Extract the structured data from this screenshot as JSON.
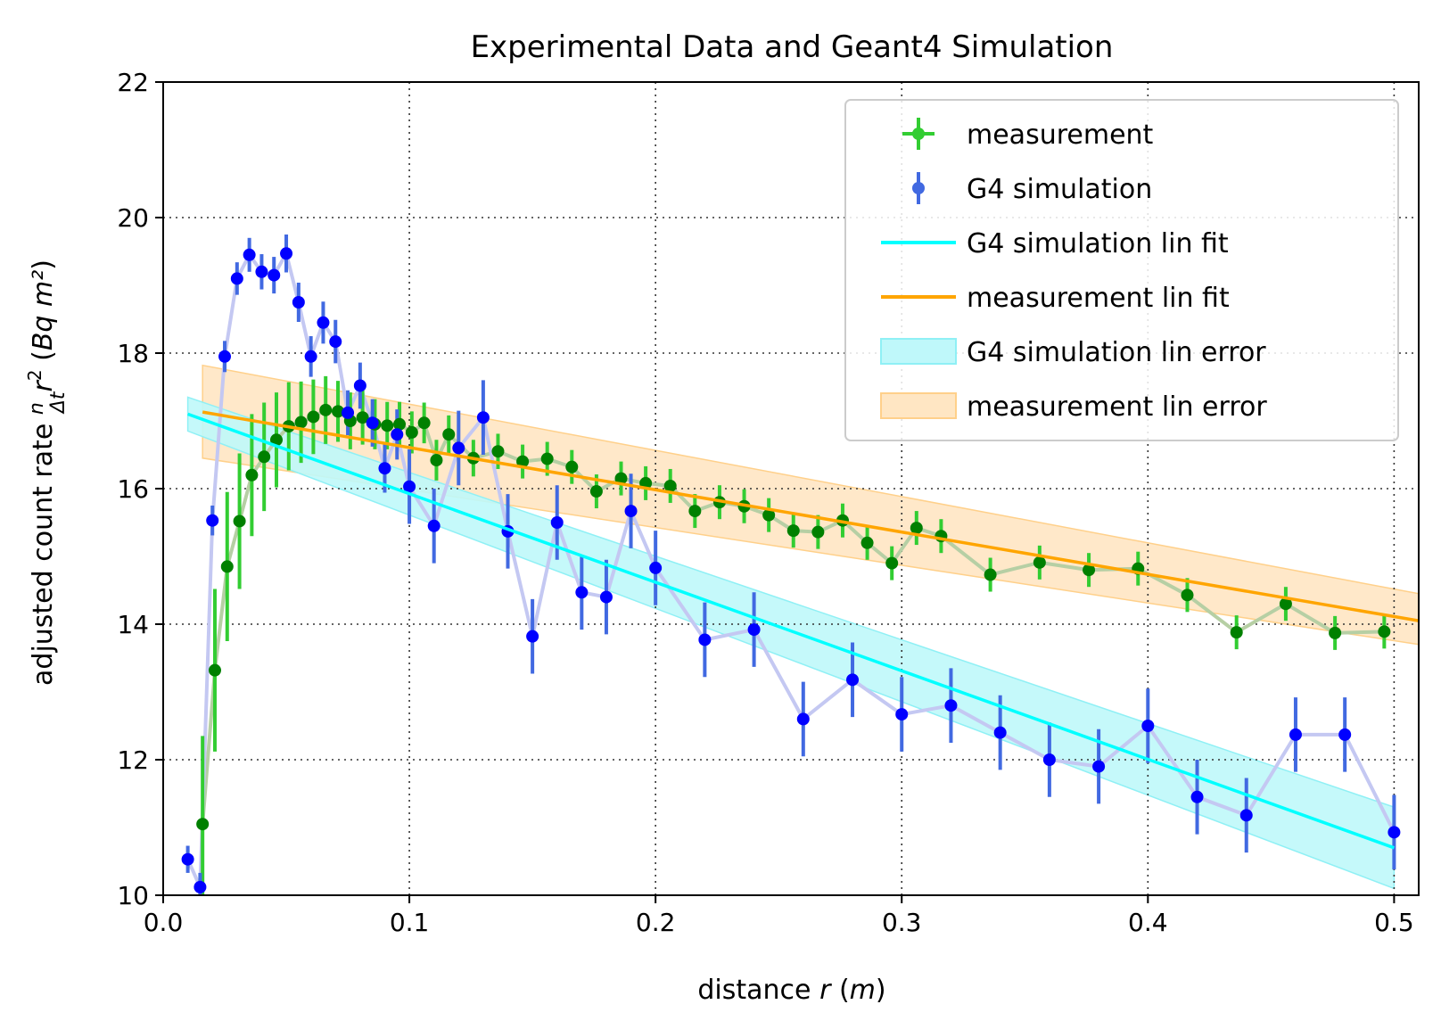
{
  "chart_data": {
    "type": "scatter",
    "title": "Experimental Data and Geant4 Simulation",
    "xlabel": "distance",
    "xlabel_var": "r",
    "xlabel_unit": "m",
    "ylabel": "adjusted count rate",
    "ylabel_unit": "Bq m²",
    "xlim": [
      0.0,
      0.51
    ],
    "ylim": [
      10,
      22
    ],
    "xticks": [
      0.0,
      0.1,
      0.2,
      0.3,
      0.4,
      0.5
    ],
    "xtick_labels": [
      "0.0",
      "0.1",
      "0.2",
      "0.3",
      "0.4",
      "0.5"
    ],
    "yticks": [
      10,
      12,
      14,
      16,
      18,
      20,
      22
    ],
    "ytick_labels": [
      "10",
      "12",
      "14",
      "16",
      "18",
      "20",
      "22"
    ],
    "grid": true,
    "legend_position": "top-right",
    "colors": {
      "measurement": "#32cd32",
      "measurement_marker": "#008000",
      "measurement_line": "#b6cfa4",
      "simulation": "#4169e1",
      "simulation_marker": "#0000ff",
      "simulation_line": "#c4c8f2",
      "sim_fit": "#00ffff",
      "meas_fit": "#ffa500",
      "sim_band": "#bff8fa",
      "meas_band": "#ffe6c3"
    },
    "series": [
      {
        "name": "measurement",
        "x": [
          0.016,
          0.021,
          0.026,
          0.031,
          0.036,
          0.041,
          0.046,
          0.051,
          0.056,
          0.061,
          0.066,
          0.071,
          0.076,
          0.081,
          0.086,
          0.091,
          0.096,
          0.101,
          0.106,
          0.111,
          0.116,
          0.126,
          0.136,
          0.146,
          0.156,
          0.166,
          0.176,
          0.186,
          0.196,
          0.206,
          0.216,
          0.226,
          0.236,
          0.246,
          0.256,
          0.266,
          0.276,
          0.286,
          0.296,
          0.306,
          0.316,
          0.336,
          0.356,
          0.376,
          0.396,
          0.416,
          0.436,
          0.456,
          0.476,
          0.496
        ],
        "y": [
          11.05,
          13.32,
          14.85,
          15.52,
          16.2,
          16.47,
          16.72,
          16.92,
          16.98,
          17.06,
          17.16,
          17.14,
          17.0,
          17.05,
          16.95,
          16.93,
          16.95,
          16.83,
          16.97,
          16.42,
          16.8,
          16.45,
          16.55,
          16.4,
          16.44,
          16.32,
          15.96,
          16.15,
          16.08,
          16.04,
          15.67,
          15.8,
          15.74,
          15.61,
          15.38,
          15.36,
          15.53,
          15.2,
          14.9,
          15.42,
          15.3,
          14.73,
          14.91,
          14.8,
          14.82,
          14.43,
          13.88,
          14.3,
          13.87,
          13.89
        ],
        "yerr": [
          1.3,
          1.2,
          1.1,
          1.0,
          0.9,
          0.8,
          0.7,
          0.65,
          0.6,
          0.55,
          0.5,
          0.45,
          0.42,
          0.4,
          0.37,
          0.35,
          0.33,
          0.31,
          0.3,
          0.3,
          0.28,
          0.27,
          0.26,
          0.25,
          0.25,
          0.25,
          0.25,
          0.25,
          0.25,
          0.25,
          0.25,
          0.25,
          0.25,
          0.25,
          0.25,
          0.25,
          0.25,
          0.25,
          0.25,
          0.25,
          0.25,
          0.25,
          0.25,
          0.25,
          0.25,
          0.25,
          0.25,
          0.25,
          0.25,
          0.25
        ]
      },
      {
        "name": "G4 simulation",
        "x": [
          0.01,
          0.015,
          0.02,
          0.025,
          0.03,
          0.035,
          0.04,
          0.045,
          0.05,
          0.055,
          0.06,
          0.065,
          0.07,
          0.075,
          0.08,
          0.085,
          0.09,
          0.095,
          0.1,
          0.11,
          0.12,
          0.13,
          0.14,
          0.15,
          0.16,
          0.17,
          0.18,
          0.19,
          0.2,
          0.22,
          0.24,
          0.26,
          0.28,
          0.3,
          0.32,
          0.34,
          0.36,
          0.38,
          0.4,
          0.42,
          0.44,
          0.46,
          0.48,
          0.5
        ],
        "y": [
          10.53,
          10.12,
          15.53,
          17.95,
          19.1,
          19.45,
          19.2,
          19.15,
          19.47,
          18.75,
          17.95,
          18.45,
          18.17,
          17.12,
          17.52,
          16.97,
          16.3,
          16.8,
          16.03,
          15.45,
          16.6,
          17.05,
          15.37,
          13.82,
          15.5,
          14.47,
          14.4,
          15.67,
          14.83,
          13.77,
          13.92,
          12.6,
          13.18,
          12.67,
          12.8,
          12.4,
          12.0,
          11.9,
          12.5,
          11.45,
          11.18,
          12.37,
          12.37,
          10.93
        ]
      },
      {
        "name": "G4 simulation lin fit",
        "x": [
          0.01,
          0.5
        ],
        "y": [
          17.1,
          10.7
        ]
      },
      {
        "name": "measurement lin fit",
        "x": [
          0.016,
          0.51
        ],
        "y": [
          17.13,
          14.05
        ]
      },
      {
        "name": "G4 simulation lin error",
        "x": [
          0.01,
          0.5
        ],
        "y_low": [
          16.85,
          10.1
        ],
        "y_high": [
          17.35,
          11.3
        ]
      },
      {
        "name": "measurement lin error",
        "x": [
          0.016,
          0.51
        ],
        "y_low": [
          16.45,
          13.7
        ],
        "y_high": [
          17.82,
          14.45
        ]
      }
    ]
  }
}
